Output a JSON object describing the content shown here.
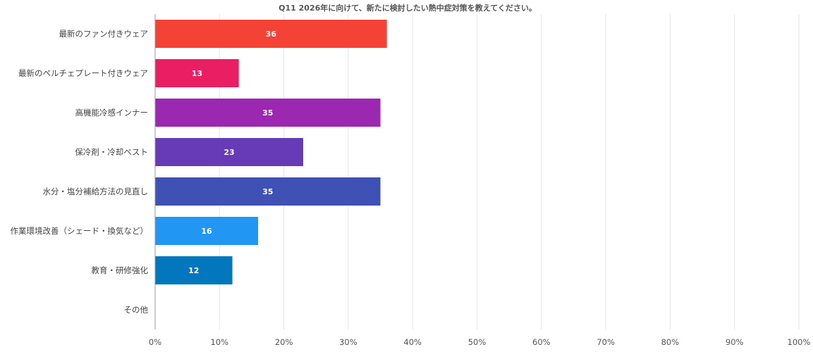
{
  "chart_data": {
    "type": "bar",
    "orientation": "horizontal",
    "title": "Q11 2026年に向けて、新たに検討したい熱中症対策を教えてください。",
    "categories": [
      "最新のファン付きウェア",
      "最新のペルチェプレート付きウェア",
      "高機能冷感インナー",
      "保冷剤・冷却ベスト",
      "水分・塩分補給方法の見直し",
      "作業環境改善（シェード・換気など）",
      "教育・研修強化",
      "その他"
    ],
    "values": [
      36,
      13,
      35,
      23,
      35,
      16,
      12,
      0
    ],
    "data_labels": [
      "36",
      "13",
      "35",
      "23",
      "35",
      "16",
      "12",
      ""
    ],
    "colors": [
      "#f44336",
      "#e91e63",
      "#9c27b0",
      "#673ab7",
      "#3f51b5",
      "#2196f3",
      "#0277bd",
      "#0288d1"
    ],
    "xlim": [
      0,
      100
    ],
    "x_ticks": [
      "0%",
      "10%",
      "20%",
      "30%",
      "40%",
      "50%",
      "60%",
      "70%",
      "80%",
      "90%",
      "100%"
    ],
    "grid": true,
    "legend": "none"
  }
}
